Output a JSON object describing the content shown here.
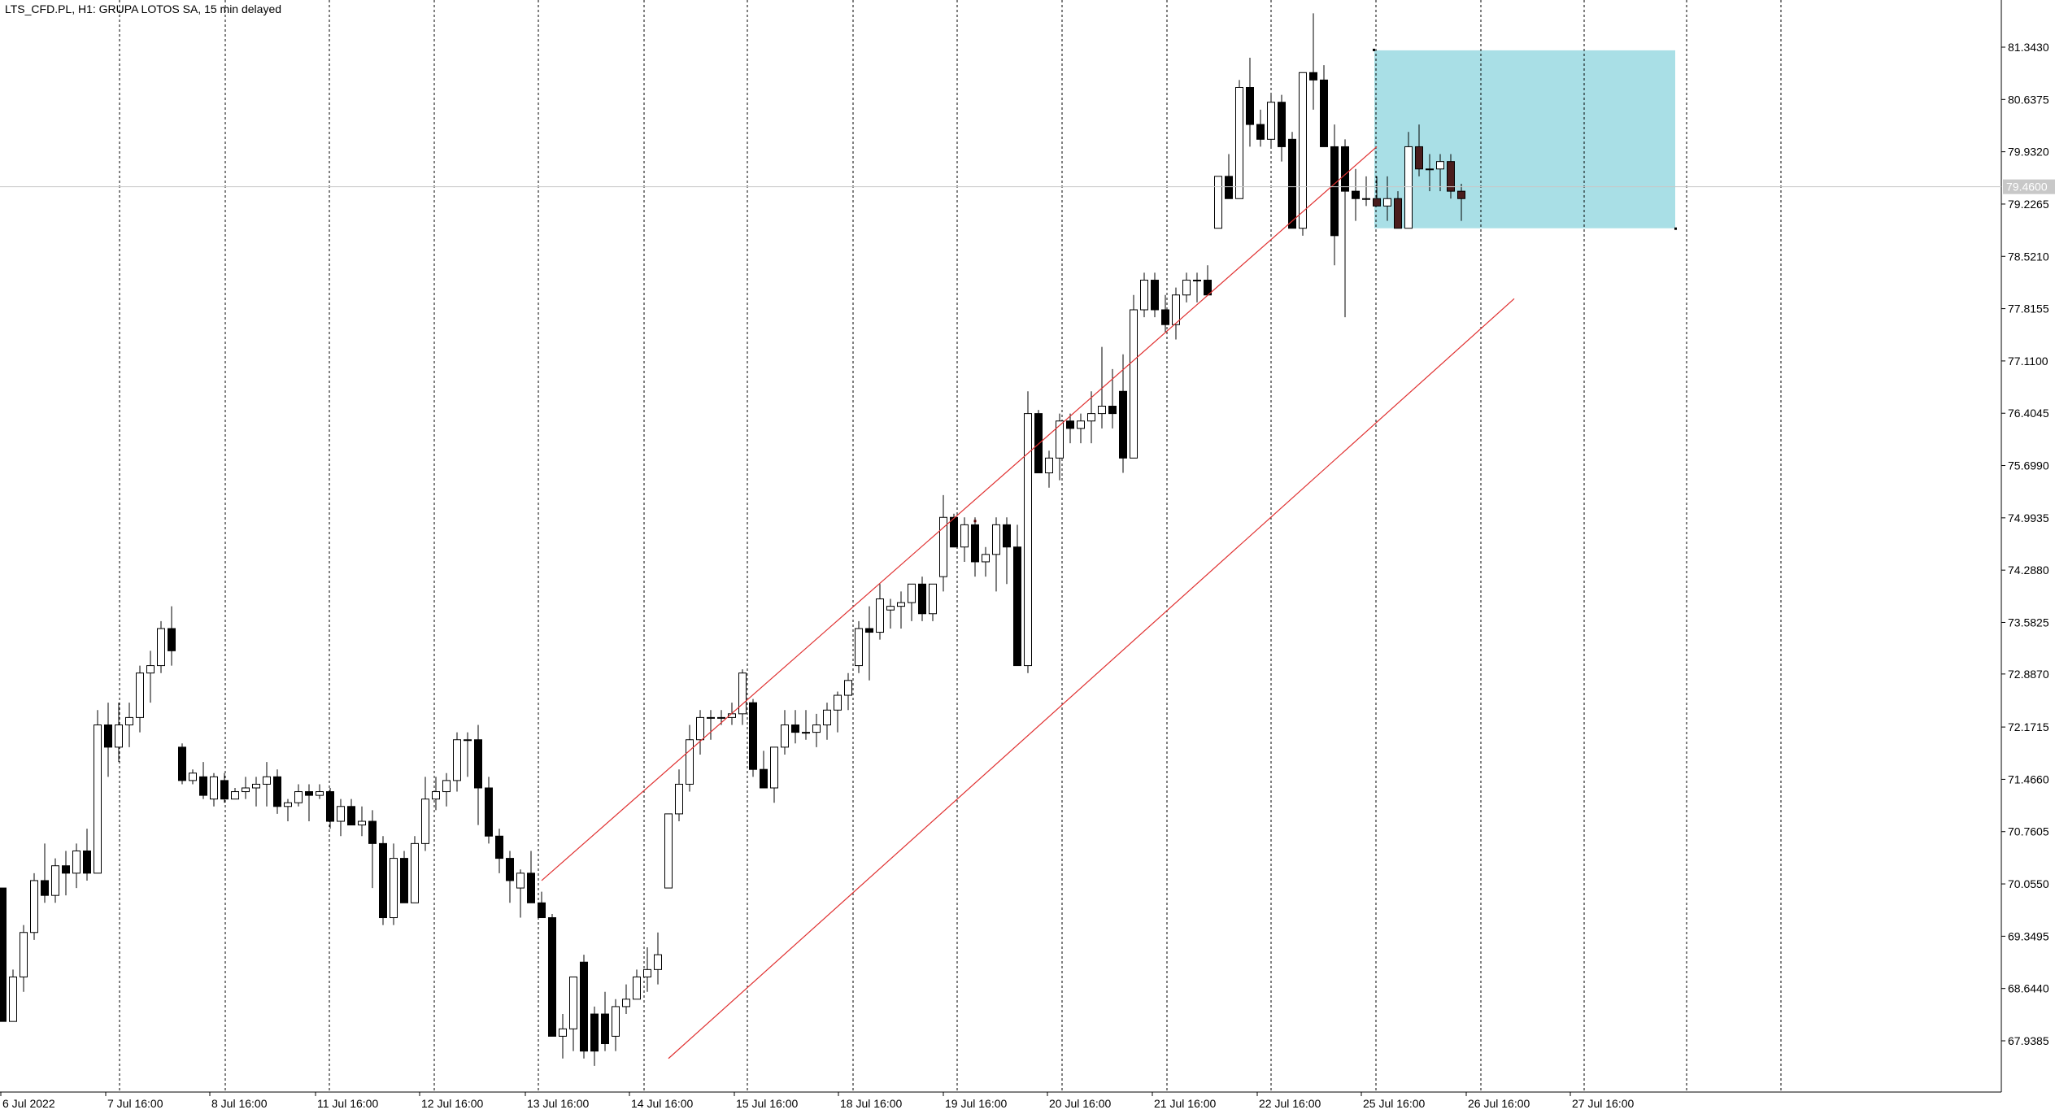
{
  "header": {
    "title": "LTS_CFD.PL, H1:  GRUPA LOTOS SA, 15 min delayed"
  },
  "colors": {
    "background": "#ffffff",
    "grid": "#000000",
    "bull_body": "#ffffff",
    "bear_body": "#000000",
    "bear_body_zone": "#4a1d1d",
    "wick": "#000000",
    "channel": "#e03030",
    "zone_fill": "#a9dfe6",
    "price_line": "#c8c8c8",
    "price_tag_bg": "#c8c8c8",
    "price_tag_text": "#ffffff"
  },
  "chart_data": {
    "type": "candlestick",
    "title": "LTS_CFD.PL, H1:  GRUPA LOTOS SA, 15 min delayed",
    "price_labels": [
      "81.3430",
      "80.6375",
      "79.9320",
      "79.2265",
      "78.5210",
      "77.8155",
      "77.1100",
      "76.4045",
      "75.6990",
      "74.9935",
      "74.2880",
      "73.5825",
      "72.8870",
      "72.1715",
      "71.4660",
      "70.7605",
      "70.0550",
      "69.3495",
      "68.6440",
      "67.9385"
    ],
    "time_labels": [
      "6 Jul 2022",
      "7 Jul 16:00",
      "8 Jul 16:00",
      "11 Jul 16:00",
      "12 Jul 16:00",
      "13 Jul 16:00",
      "14 Jul 16:00",
      "15 Jul 16:00",
      "18 Jul 16:00",
      "19 Jul 16:00",
      "20 Jul 16:00",
      "21 Jul 16:00",
      "22 Jul 16:00",
      "25 Jul 16:00",
      "26 Jul 16:00",
      "27 Jul 16:00"
    ],
    "current_price": "79.4600",
    "ylim": [
      67.3,
      81.9
    ],
    "bar_count": 159,
    "grid": "vertical dotted",
    "candles": [
      [
        70.0,
        70.0,
        68.2,
        68.2
      ],
      [
        68.2,
        68.9,
        68.2,
        68.8
      ],
      [
        68.8,
        69.5,
        68.6,
        69.4
      ],
      [
        69.4,
        70.2,
        69.3,
        70.1
      ],
      [
        70.1,
        70.6,
        69.8,
        69.9
      ],
      [
        69.9,
        70.4,
        69.8,
        70.3
      ],
      [
        70.3,
        70.5,
        69.9,
        70.2
      ],
      [
        70.2,
        70.6,
        70.0,
        70.5
      ],
      [
        70.5,
        70.8,
        70.1,
        70.2
      ],
      [
        70.2,
        72.4,
        70.2,
        72.2
      ],
      [
        72.2,
        72.5,
        71.5,
        71.9
      ],
      [
        71.9,
        72.5,
        71.7,
        72.2
      ],
      [
        72.2,
        72.5,
        71.9,
        72.3
      ],
      [
        72.3,
        73.0,
        72.1,
        72.9
      ],
      [
        72.9,
        73.2,
        72.5,
        73.0
      ],
      [
        73.0,
        73.6,
        72.9,
        73.5
      ],
      [
        73.5,
        73.8,
        73.0,
        73.2
      ],
      [
        71.9,
        71.95,
        71.4,
        71.45
      ],
      [
        71.45,
        71.6,
        71.4,
        71.55
      ],
      [
        71.5,
        71.7,
        71.2,
        71.25
      ],
      [
        71.2,
        71.55,
        71.1,
        71.5
      ],
      [
        71.45,
        71.55,
        71.15,
        71.2
      ],
      [
        71.2,
        71.35,
        71.2,
        71.3
      ],
      [
        71.3,
        71.5,
        71.2,
        71.35
      ],
      [
        71.35,
        71.5,
        71.1,
        71.4
      ],
      [
        71.4,
        71.7,
        71.1,
        71.5
      ],
      [
        71.5,
        71.6,
        71.0,
        71.1
      ],
      [
        71.1,
        71.2,
        70.9,
        71.15
      ],
      [
        71.15,
        71.4,
        71.1,
        71.3
      ],
      [
        71.3,
        71.4,
        70.9,
        71.25
      ],
      [
        71.25,
        71.4,
        71.2,
        71.3
      ],
      [
        71.3,
        71.35,
        70.8,
        70.9
      ],
      [
        70.9,
        71.2,
        70.7,
        71.1
      ],
      [
        71.1,
        71.2,
        70.85,
        70.85
      ],
      [
        70.85,
        71.1,
        70.7,
        70.9
      ],
      [
        70.9,
        71.05,
        70.0,
        70.6
      ],
      [
        70.6,
        70.7,
        69.5,
        69.6
      ],
      [
        69.6,
        70.6,
        69.5,
        70.4
      ],
      [
        70.4,
        70.5,
        69.8,
        69.8
      ],
      [
        69.8,
        70.7,
        69.8,
        70.6
      ],
      [
        70.6,
        71.5,
        70.5,
        71.2
      ],
      [
        71.2,
        71.5,
        71.05,
        71.3
      ],
      [
        71.3,
        71.55,
        71.1,
        71.45
      ],
      [
        71.45,
        72.1,
        71.3,
        72.0
      ],
      [
        72.0,
        72.1,
        71.5,
        72.0
      ],
      [
        72.0,
        72.2,
        70.85,
        71.35
      ],
      [
        71.35,
        71.5,
        70.6,
        70.7
      ],
      [
        70.7,
        70.8,
        70.2,
        70.4
      ],
      [
        70.4,
        70.5,
        69.8,
        70.1
      ],
      [
        70.0,
        70.25,
        69.6,
        70.2
      ],
      [
        70.2,
        70.5,
        69.8,
        69.8
      ],
      [
        69.8,
        69.95,
        69.6,
        69.6
      ],
      [
        69.6,
        69.65,
        68.0,
        68.0
      ],
      [
        68.0,
        68.3,
        67.7,
        68.1
      ],
      [
        68.1,
        68.8,
        67.8,
        68.8
      ],
      [
        69.0,
        69.1,
        67.7,
        67.8
      ],
      [
        68.3,
        68.4,
        67.6,
        67.8
      ],
      [
        68.3,
        68.6,
        67.8,
        67.9
      ],
      [
        68.0,
        68.5,
        67.8,
        68.4
      ],
      [
        68.4,
        68.7,
        68.3,
        68.5
      ],
      [
        68.5,
        68.9,
        68.5,
        68.8
      ],
      [
        68.8,
        69.2,
        68.6,
        68.9
      ],
      [
        68.9,
        69.4,
        68.7,
        69.1
      ],
      [
        70.0,
        71.0,
        70.0,
        71.0
      ],
      [
        71.0,
        71.6,
        70.9,
        71.4
      ],
      [
        71.4,
        72.2,
        71.3,
        72.0
      ],
      [
        72.0,
        72.4,
        71.8,
        72.3
      ],
      [
        72.3,
        72.4,
        72.0,
        72.3
      ],
      [
        72.3,
        72.4,
        72.2,
        72.3
      ],
      [
        72.3,
        72.5,
        72.2,
        72.35
      ],
      [
        72.35,
        72.95,
        72.2,
        72.9
      ],
      [
        72.5,
        72.55,
        71.5,
        71.6
      ],
      [
        71.6,
        71.85,
        71.35,
        71.35
      ],
      [
        71.35,
        71.9,
        71.15,
        71.9
      ],
      [
        71.9,
        72.4,
        71.8,
        72.2
      ],
      [
        72.2,
        72.4,
        71.95,
        72.1
      ],
      [
        72.1,
        72.4,
        72.0,
        72.1
      ],
      [
        72.1,
        72.35,
        71.9,
        72.2
      ],
      [
        72.2,
        72.5,
        72.0,
        72.4
      ],
      [
        72.4,
        72.65,
        72.1,
        72.6
      ],
      [
        72.6,
        72.9,
        72.4,
        72.8
      ],
      [
        73.0,
        73.6,
        72.9,
        73.5
      ],
      [
        73.5,
        73.8,
        72.8,
        73.45
      ],
      [
        73.45,
        74.1,
        73.35,
        73.9
      ],
      [
        73.75,
        73.9,
        73.5,
        73.8
      ],
      [
        73.8,
        74.0,
        73.5,
        73.85
      ],
      [
        73.85,
        74.1,
        73.6,
        74.1
      ],
      [
        74.1,
        74.2,
        73.6,
        73.7
      ],
      [
        73.7,
        74.1,
        73.6,
        74.1
      ],
      [
        74.2,
        75.3,
        74.0,
        75.0
      ],
      [
        75.0,
        75.05,
        74.6,
        74.6
      ],
      [
        74.6,
        75.0,
        74.4,
        74.9
      ],
      [
        74.9,
        75.0,
        74.2,
        74.4
      ],
      [
        74.4,
        74.6,
        74.2,
        74.5
      ],
      [
        74.5,
        75.0,
        74.0,
        74.9
      ],
      [
        74.9,
        75.0,
        74.1,
        74.6
      ],
      [
        74.6,
        74.9,
        73.0,
        73.0
      ],
      [
        73.0,
        76.7,
        72.9,
        76.4
      ],
      [
        76.4,
        76.45,
        75.6,
        75.6
      ],
      [
        75.6,
        75.9,
        75.4,
        75.8
      ],
      [
        75.8,
        76.4,
        75.5,
        76.3
      ],
      [
        76.3,
        76.4,
        76.0,
        76.2
      ],
      [
        76.2,
        76.4,
        76.0,
        76.3
      ],
      [
        76.3,
        76.7,
        76.0,
        76.4
      ],
      [
        76.4,
        77.3,
        76.2,
        76.5
      ],
      [
        76.5,
        77.0,
        76.2,
        76.4
      ],
      [
        76.7,
        77.2,
        75.6,
        75.8
      ],
      [
        75.8,
        78.0,
        75.8,
        77.8
      ],
      [
        77.8,
        78.3,
        77.7,
        78.2
      ],
      [
        78.2,
        78.3,
        77.7,
        77.8
      ],
      [
        77.8,
        78.0,
        77.5,
        77.6
      ],
      [
        77.6,
        78.1,
        77.4,
        78.0
      ],
      [
        78.0,
        78.3,
        77.9,
        78.2
      ],
      [
        78.2,
        78.3,
        77.9,
        78.2
      ],
      [
        78.2,
        78.4,
        78.1,
        78.0
      ],
      [
        78.9,
        79.6,
        78.9,
        79.6
      ],
      [
        79.6,
        79.9,
        79.3,
        79.3
      ],
      [
        79.3,
        80.9,
        79.3,
        80.8
      ],
      [
        80.8,
        81.2,
        80.0,
        80.3
      ],
      [
        80.3,
        80.5,
        80.0,
        80.1
      ],
      [
        80.1,
        80.7,
        80.0,
        80.6
      ],
      [
        80.6,
        80.7,
        79.8,
        80.0
      ],
      [
        80.1,
        80.2,
        78.9,
        78.9
      ],
      [
        78.9,
        81.0,
        78.8,
        81.0
      ],
      [
        81.0,
        81.8,
        80.5,
        80.9
      ],
      [
        80.9,
        81.1,
        80.0,
        80.0
      ],
      [
        80.0,
        80.3,
        78.4,
        78.8
      ],
      [
        80.0,
        80.1,
        77.7,
        79.4
      ],
      [
        79.4,
        79.7,
        79.0,
        79.3
      ],
      [
        79.3,
        79.6,
        79.2,
        79.3
      ],
      [
        79.3,
        79.6,
        79.2,
        79.2
      ],
      [
        79.2,
        79.6,
        79.0,
        79.3
      ],
      [
        79.3,
        79.4,
        78.9,
        78.9
      ],
      [
        78.9,
        80.2,
        78.9,
        80.0
      ],
      [
        80.0,
        80.3,
        79.6,
        79.7
      ],
      [
        79.7,
        79.9,
        79.4,
        79.7
      ],
      [
        79.7,
        79.9,
        79.4,
        79.8
      ],
      [
        79.8,
        79.9,
        79.3,
        79.4
      ],
      [
        79.4,
        79.5,
        79.0,
        79.3
      ]
    ],
    "channel": {
      "upper": [
        [
          51,
          70.1
        ],
        [
          130,
          80.0
        ]
      ],
      "lower": [
        [
          63,
          67.7
        ],
        [
          143,
          77.95
        ]
      ],
      "anchor_point": [
        92,
        74.95
      ]
    },
    "zone": {
      "from_bar": 130,
      "to_bar": 158,
      "top": 81.3,
      "bottom": 78.9
    }
  }
}
